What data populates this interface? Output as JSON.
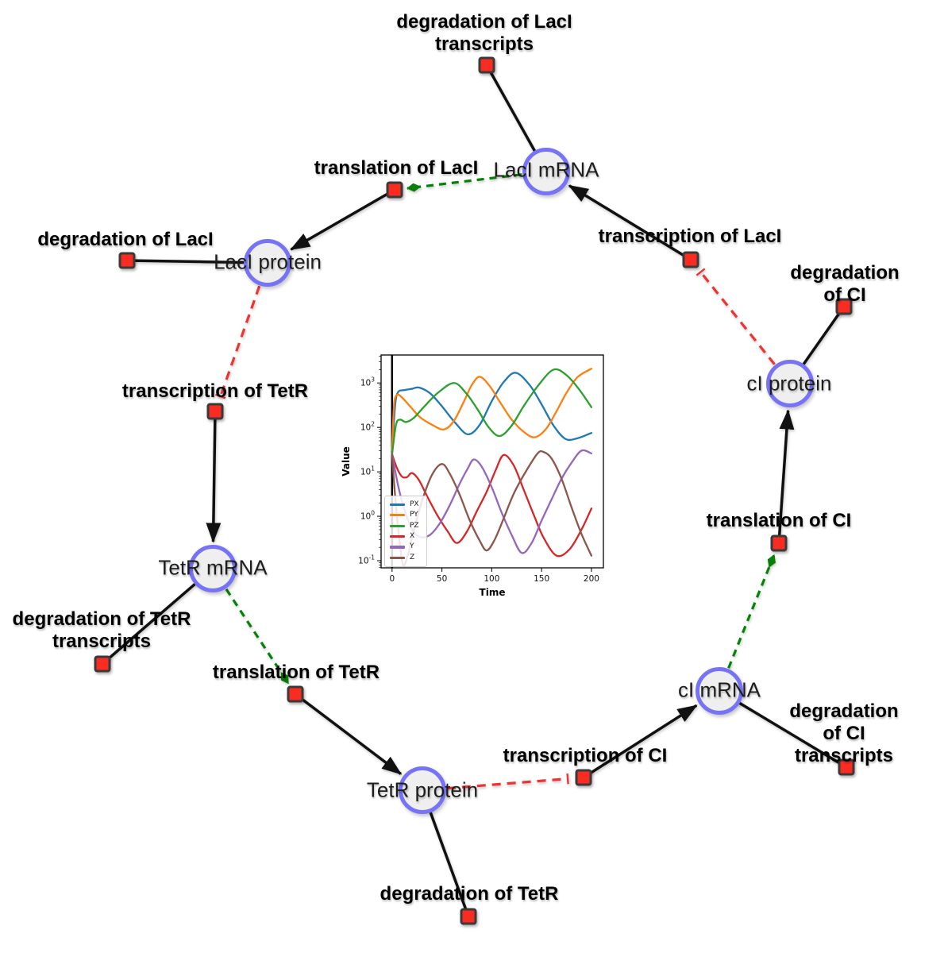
{
  "network": {
    "node_style": {
      "species_fill": "#efefef",
      "species_border": "#7673f6",
      "reaction_fill": "#fa2b20",
      "reaction_border": "#3a3a3a"
    },
    "edge_colors": {
      "reaction_flow": "#111111",
      "modifier": "#078007",
      "inhibition": "#ee3333"
    },
    "species": [
      {
        "label": "LacI mRNA"
      },
      {
        "label": "LacI protein"
      },
      {
        "label": "TetR mRNA"
      },
      {
        "label": "TetR protein"
      },
      {
        "label": "cI mRNA"
      },
      {
        "label": "cI protein"
      }
    ],
    "reactions": [
      {
        "label": "degradation of LacI\ntranscripts"
      },
      {
        "label": "translation of LacI"
      },
      {
        "label": "degradation of LacI"
      },
      {
        "label": "transcription of LacI"
      },
      {
        "label": "degradation of CI"
      },
      {
        "label": "transcription of TetR"
      },
      {
        "label": "translation of CI"
      },
      {
        "label": "degradation of TetR\ntranscripts"
      },
      {
        "label": "translation of TetR"
      },
      {
        "label": "degradation of CI\ntranscripts"
      },
      {
        "label": "transcription of CI"
      },
      {
        "label": "degradation of TetR"
      }
    ]
  },
  "chart_data": {
    "type": "line",
    "title": "",
    "xlabel": "Time",
    "ylabel": "Value",
    "yscale": "log",
    "xlim": [
      -11,
      212
    ],
    "ylog_lim": [
      -1.16,
      3.63
    ],
    "x_ticks": [
      0,
      50,
      100,
      150,
      200
    ],
    "y_tick_exponents": [
      -1,
      0,
      1,
      2,
      3
    ],
    "legend_position": "lower left",
    "grid": false,
    "vline_x": 0,
    "series": [
      {
        "name": "PX",
        "color": "#1f77b4",
        "points": [
          [
            0,
            25
          ],
          [
            3,
            300
          ],
          [
            6,
            620
          ],
          [
            12,
            690
          ],
          [
            20,
            740
          ],
          [
            27,
            790
          ],
          [
            38,
            590
          ],
          [
            50,
            300
          ],
          [
            63,
            130
          ],
          [
            76,
            70
          ],
          [
            88,
            115
          ],
          [
            100,
            390
          ],
          [
            112,
            1050
          ],
          [
            124,
            1700
          ],
          [
            138,
            900
          ],
          [
            150,
            330
          ],
          [
            162,
            110
          ],
          [
            174,
            55
          ],
          [
            186,
            57
          ],
          [
            200,
            75
          ]
        ]
      },
      {
        "name": "PY",
        "color": "#ff7f0e",
        "points": [
          [
            0,
            30
          ],
          [
            2,
            320
          ],
          [
            5,
            540
          ],
          [
            10,
            470
          ],
          [
            18,
            300
          ],
          [
            28,
            170
          ],
          [
            40,
            115
          ],
          [
            52,
            90
          ],
          [
            62,
            140
          ],
          [
            72,
            380
          ],
          [
            80,
            900
          ],
          [
            88,
            1380
          ],
          [
            98,
            850
          ],
          [
            108,
            380
          ],
          [
            120,
            150
          ],
          [
            132,
            80
          ],
          [
            143,
            60
          ],
          [
            154,
            90
          ],
          [
            164,
            210
          ],
          [
            175,
            600
          ],
          [
            186,
            1350
          ],
          [
            200,
            2100
          ]
        ]
      },
      {
        "name": "PZ",
        "color": "#2ca02c",
        "points": [
          [
            0,
            25
          ],
          [
            4,
            115
          ],
          [
            8,
            150
          ],
          [
            14,
            132
          ],
          [
            22,
            165
          ],
          [
            32,
            290
          ],
          [
            46,
            600
          ],
          [
            62,
            1000
          ],
          [
            74,
            600
          ],
          [
            86,
            250
          ],
          [
            97,
            100
          ],
          [
            108,
            64
          ],
          [
            120,
            110
          ],
          [
            132,
            300
          ],
          [
            147,
            900
          ],
          [
            162,
            2000
          ],
          [
            175,
            1500
          ],
          [
            188,
            700
          ],
          [
            200,
            285
          ]
        ]
      },
      {
        "name": "X",
        "color": "#d62728",
        "points": [
          [
            0,
            25
          ],
          [
            5,
            12
          ],
          [
            10,
            7.8
          ],
          [
            15,
            7.6
          ],
          [
            20,
            9.4
          ],
          [
            27,
            6.5
          ],
          [
            36,
            2.6
          ],
          [
            46,
            1
          ],
          [
            56,
            0.45
          ],
          [
            65,
            0.25
          ],
          [
            75,
            0.45
          ],
          [
            85,
            1.3
          ],
          [
            95,
            3.6
          ],
          [
            104,
            11
          ],
          [
            112,
            24
          ],
          [
            122,
            14
          ],
          [
            132,
            4
          ],
          [
            142,
            1.1
          ],
          [
            152,
            0.33
          ],
          [
            165,
            0.13
          ],
          [
            178,
            0.18
          ],
          [
            190,
            0.5
          ],
          [
            200,
            1.5
          ]
        ]
      },
      {
        "name": "Y",
        "color": "#9467bd",
        "points": [
          [
            0,
            25
          ],
          [
            6,
            5
          ],
          [
            12,
            1.5
          ],
          [
            20,
            0.5
          ],
          [
            28,
            0.34
          ],
          [
            38,
            0.38
          ],
          [
            48,
            0.7
          ],
          [
            58,
            1.8
          ],
          [
            68,
            5.5
          ],
          [
            76,
            12
          ],
          [
            82,
            19
          ],
          [
            90,
            13
          ],
          [
            100,
            4.5
          ],
          [
            110,
            1.2
          ],
          [
            120,
            0.38
          ],
          [
            130,
            0.15
          ],
          [
            140,
            0.25
          ],
          [
            150,
            0.8
          ],
          [
            160,
            2.4
          ],
          [
            170,
            7
          ],
          [
            180,
            16
          ],
          [
            190,
            30
          ],
          [
            200,
            26
          ]
        ]
      },
      {
        "name": "Z",
        "color": "#8c564b",
        "points": [
          [
            0,
            25
          ],
          [
            3,
            3
          ],
          [
            7,
            0.35
          ],
          [
            11,
            0.08
          ],
          [
            16,
            0.14
          ],
          [
            22,
            0.5
          ],
          [
            30,
            2.2
          ],
          [
            40,
            8.5
          ],
          [
            50,
            15
          ],
          [
            58,
            9
          ],
          [
            68,
            3
          ],
          [
            78,
            0.8
          ],
          [
            88,
            0.28
          ],
          [
            95,
            0.17
          ],
          [
            103,
            0.3
          ],
          [
            112,
            0.9
          ],
          [
            122,
            3.2
          ],
          [
            134,
            10
          ],
          [
            146,
            26
          ],
          [
            152,
            28
          ],
          [
            160,
            20
          ],
          [
            170,
            7
          ],
          [
            180,
            1.6
          ],
          [
            190,
            0.4
          ],
          [
            200,
            0.13
          ]
        ]
      }
    ]
  }
}
